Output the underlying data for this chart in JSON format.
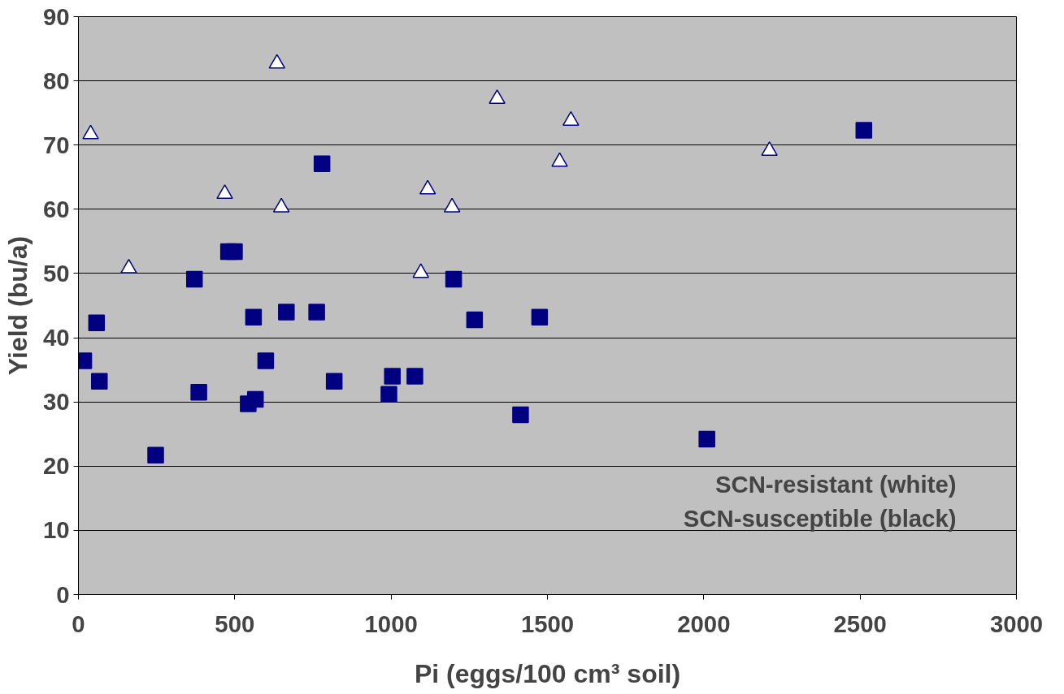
{
  "chart_data": {
    "type": "scatter",
    "xlabel": "Pi (eggs/100 cm³ soil)",
    "ylabel": "Yield (bu/a)",
    "xlim": [
      0,
      3000
    ],
    "xticks": [
      0,
      500,
      1000,
      1500,
      2000,
      2500,
      3000
    ],
    "ylim": [
      0,
      90
    ],
    "yticks": [
      0,
      10,
      20,
      30,
      40,
      50,
      60,
      70,
      80,
      90
    ],
    "grid": "y",
    "annotations": [
      "SCN-resistant (white)",
      "SCN-susceptible (black)"
    ],
    "series": [
      {
        "color": "#ffffff",
        "marker": "triangle",
        "x": [
          39,
          161,
          468,
          635,
          649,
          1117,
          1095,
          1195,
          1339,
          1539,
          1575,
          2210
        ],
        "values": [
          71.7,
          50.8,
          62.4,
          82.7,
          60.3,
          63.1,
          50.1,
          60.3,
          77.2,
          67.4,
          73.8,
          69.1
        ]
      },
      {
        "color": "#000080",
        "marker": "square",
        "x": [
          17,
          58,
          67,
          247,
          371,
          385,
          480,
          499,
          543,
          566,
          560,
          599,
          665,
          762,
          779,
          818,
          1004,
          1076,
          993,
          1200,
          1267,
          1414,
          1475,
          2010,
          2512
        ],
        "values": [
          36.4,
          42.3,
          33.2,
          21.7,
          49.1,
          31.5,
          53.4,
          53.4,
          29.7,
          30.4,
          43.2,
          36.4,
          44.0,
          44.0,
          67.1,
          33.2,
          34.0,
          34.0,
          31.2,
          49.1,
          42.8,
          28.0,
          43.2,
          24.2,
          72.3
        ]
      }
    ]
  }
}
